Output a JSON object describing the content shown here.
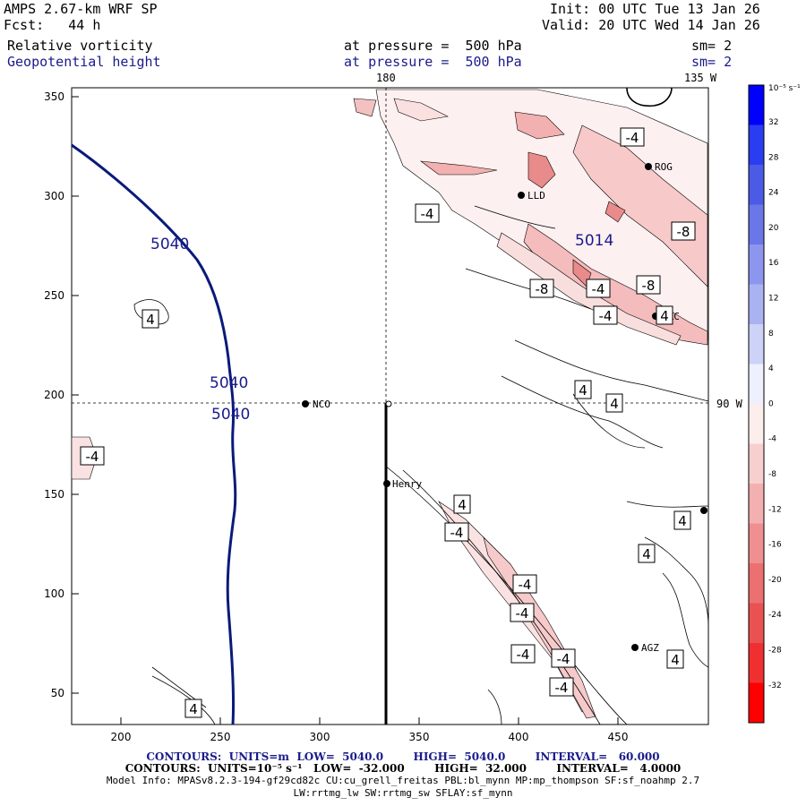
{
  "header": {
    "model": "AMPS 2.67-km WRF SP",
    "forecast": "Fcst:   44 h",
    "init": "Init: 00 UTC Tue 13 Jan 26",
    "valid": "Valid: 20 UTC Wed 14 Jan 26",
    "field1": "Relative vorticity",
    "field1_level": "at pressure =  500 hPa",
    "field1_sm": "sm= 2",
    "field2": "Geopotential height",
    "field2_level": "at pressure =  500 hPa",
    "field2_sm": "sm= 2"
  },
  "map": {
    "top_lon_labels": [
      "180",
      "135 W"
    ],
    "right_lat_label": "90 W",
    "x_ticks": [
      "200",
      "250",
      "300",
      "350",
      "400",
      "450"
    ],
    "y_ticks": [
      "350",
      "300",
      "250",
      "200",
      "150",
      "100",
      "50"
    ],
    "stations": [
      "NCO",
      "Henry",
      "ROG",
      "LLD",
      "HRC",
      "AGZ"
    ],
    "height_labels": [
      "5040",
      "5040",
      "5040",
      "5014"
    ],
    "vorticity_labels": [
      "-4",
      "-4",
      "-8",
      "-8",
      "-4",
      "-4",
      "-8",
      "4",
      "4",
      "4",
      "-4",
      "4",
      "-4",
      "4",
      "4",
      "-4",
      "-4",
      "-4",
      "4",
      "-4",
      "-4",
      "4",
      "4"
    ]
  },
  "colorbar": {
    "unit": "10⁻⁵ s⁻¹",
    "ticks": [
      "32",
      "28",
      "24",
      "20",
      "16",
      "12",
      "8",
      "4",
      "0",
      "-4",
      "-8",
      "-12",
      "-16",
      "-20",
      "-24",
      "-28",
      "-32"
    ]
  },
  "footer": {
    "line1": "CONTOURS:  UNITS=m  LOW=  5040.0        HIGH=  5040.0        INTERVAL=   60.000",
    "line2": "CONTOURS:  UNITS=10⁻⁵ s⁻¹   LOW=  -32.000        HIGH=  32.000        INTERVAL=   4.0000",
    "line3": "Model Info: MPASv8.2.3-194-gf29cd82c CU:cu_grell_freitas PBL:bl_mynn MP:mp_thompson SF:sf_noahmp 2.7",
    "line4": "LW:rrtmg_lw SW:rrtmg_sw SFLAY:sf_mynn"
  },
  "colors": {
    "height_contour": "#0a1a7a",
    "neg_vort_light": "#fbe3e3",
    "neg_vort_mid": "#f2b3b3",
    "neg_vort_dark": "#e67a7a"
  }
}
